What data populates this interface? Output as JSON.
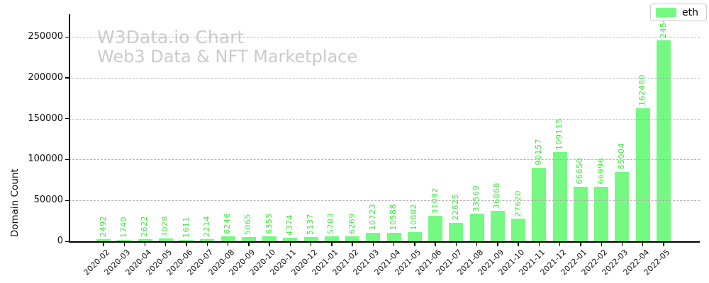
{
  "chart_data": {
    "type": "bar",
    "watermark": {
      "line1": "W3Data.io Chart",
      "line2": "Web3 Data & NFT Marketplace"
    },
    "ylabel": "Domain Count",
    "xlabel": "",
    "ylim": [
      0,
      250000
    ],
    "yticks": [
      0,
      50000,
      100000,
      150000,
      200000,
      250000
    ],
    "grid": "horizontal-dashed",
    "legend": {
      "position": "top-right",
      "entries": [
        "eth"
      ]
    },
    "categories": [
      "2020-02",
      "2020-03",
      "2020-04",
      "2020-05",
      "2020-06",
      "2020-07",
      "2020-08",
      "2020-09",
      "2020-10",
      "2020-11",
      "2020-12",
      "2021-01",
      "2021-02",
      "2021-03",
      "2021-04",
      "2021-05",
      "2021-06",
      "2021-07",
      "2021-08",
      "2021-09",
      "2021-10",
      "2021-11",
      "2021-12",
      "2022-01",
      "2022-02",
      "2022-03",
      "2022-04",
      "2022-05"
    ],
    "series": [
      {
        "name": "eth",
        "color": "#76f983",
        "values": [
          2492,
          1740,
          2622,
          3028,
          1611,
          2214,
          6246,
          5065,
          6355,
          4374,
          5137,
          5783,
          6269,
          10723,
          10588,
          10882,
          31082,
          22825,
          33569,
          36868,
          27620,
          90157,
          109115,
          66650,
          66996,
          85004,
          162480,
          245477
        ]
      }
    ],
    "bar_value_labels_shown": true
  },
  "colors": {
    "bar": "#76f983",
    "bar_label": "#3ce93c",
    "watermark": "#cbcbcb",
    "grid": "#ababab",
    "axis": "#000000",
    "tick_text": "#111111",
    "legend_border": "#cccccc"
  }
}
